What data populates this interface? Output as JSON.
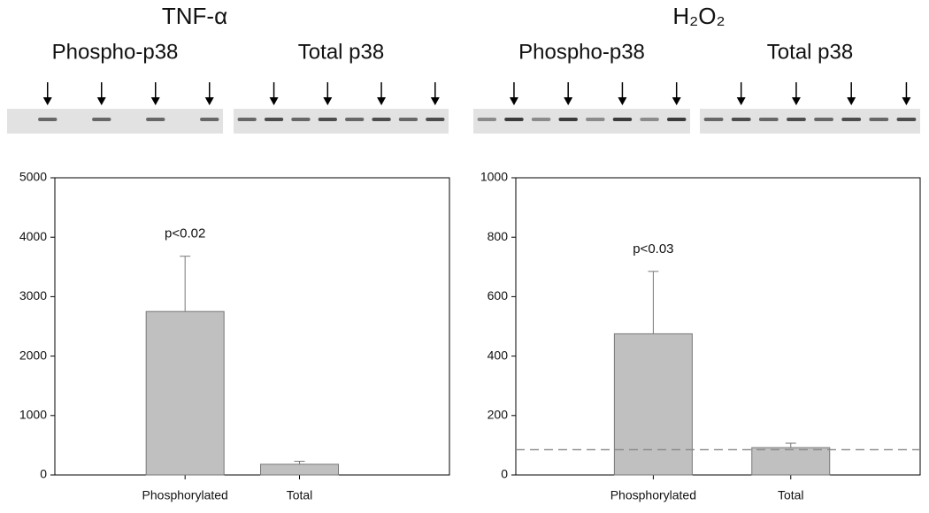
{
  "chart_data": [
    {
      "type": "bar",
      "title": "TNF-α",
      "blot_labels": [
        "Phospho-p38",
        "Total p38"
      ],
      "categories": [
        "Phosphorylated",
        "Total"
      ],
      "values": [
        2750,
        180
      ],
      "errors": [
        930,
        50
      ],
      "color": "#c0c0c0",
      "ylim": [
        0,
        5000
      ],
      "yticks": [
        0,
        1000,
        2000,
        3000,
        4000,
        5000
      ],
      "annotation": "p<0.02"
    },
    {
      "type": "bar",
      "title": "H₂O₂",
      "blot_labels": [
        "Phospho-p38",
        "Total p38"
      ],
      "categories": [
        "Phosphorylated",
        "Total"
      ],
      "values": [
        475,
        92
      ],
      "errors": [
        210,
        15
      ],
      "color": "#c0c0c0",
      "ylim": [
        0,
        1000
      ],
      "yticks": [
        0,
        200,
        400,
        600,
        800,
        1000
      ],
      "annotation": "p<0.03",
      "reference_line": 85
    }
  ]
}
